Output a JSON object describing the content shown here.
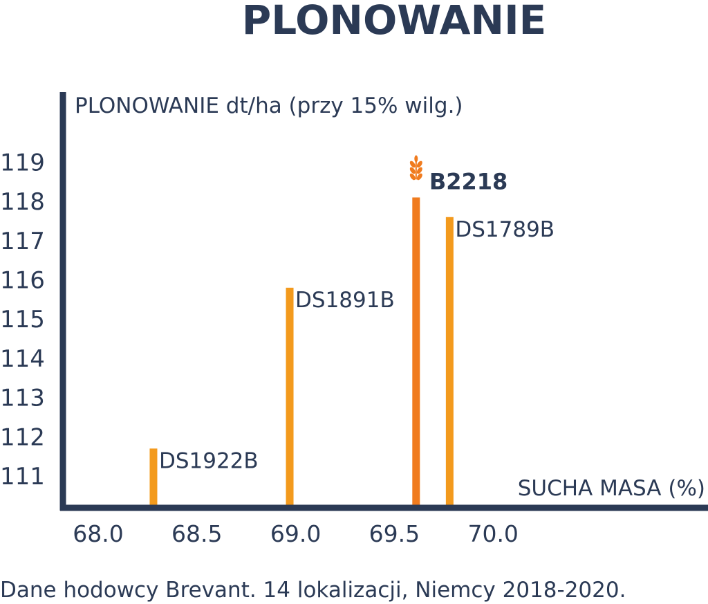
{
  "title": "PLONOWANIE",
  "footnote": "Dane hodowcy Brevant. 14 lokalizacji, Niemcy 2018-2020.",
  "colors": {
    "axis": "#2b3a55",
    "bar": "#f39a1d",
    "bar_highlight": "#f07b1e",
    "text": "#2b3a55"
  },
  "chart_data": {
    "type": "bar",
    "ylabel": "PLONOWANIE dt/ha (przy 15% wilg.)",
    "xlabel": "SUCHA MASA (%)",
    "xlim": [
      67.95,
      70.95
    ],
    "ylim": [
      110.3,
      119.5
    ],
    "x_ticks": [
      "68.0",
      "68.5",
      "69.0",
      "69.5",
      "70.0"
    ],
    "y_ticks": [
      "111",
      "112",
      "113",
      "114",
      "115",
      "116",
      "117",
      "118",
      "119"
    ],
    "grid": false,
    "points": [
      {
        "label": "DS1922B",
        "x": 68.28,
        "y": 111.7,
        "highlight": false
      },
      {
        "label": "DS1891B",
        "x": 68.97,
        "y": 115.8,
        "highlight": false
      },
      {
        "label": "B2218",
        "x": 69.61,
        "y": 118.1,
        "highlight": true,
        "icon": "wheat-icon"
      },
      {
        "label": "DS1789B",
        "x": 69.78,
        "y": 117.6,
        "highlight": false
      }
    ]
  }
}
